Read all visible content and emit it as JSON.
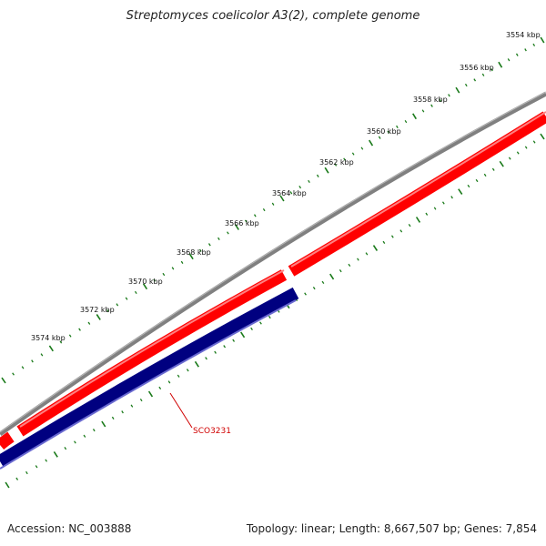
{
  "title": "Streptomyces coelicolor A3(2), complete genome",
  "footer": {
    "accession": "Accession: NC_003888",
    "summary": "Topology: linear; Length: 8,667,507 bp; Genes: 7,854"
  },
  "map": {
    "tick_labels": [
      "3554 kbp",
      "3556 kbp",
      "3558 kbp",
      "3560 kbp",
      "3562 kbp",
      "3564 kbp",
      "3566 kbp",
      "3568 kbp",
      "3570 kbp",
      "3572 kbp",
      "3574 kbp"
    ],
    "gene_label": "SCO3231",
    "colors": {
      "backbone": "#808080",
      "forward_genes": "#ff0000",
      "reverse_genes": "#000080",
      "ticks": "#1a7a1a",
      "gene_label": "#d00000"
    }
  }
}
